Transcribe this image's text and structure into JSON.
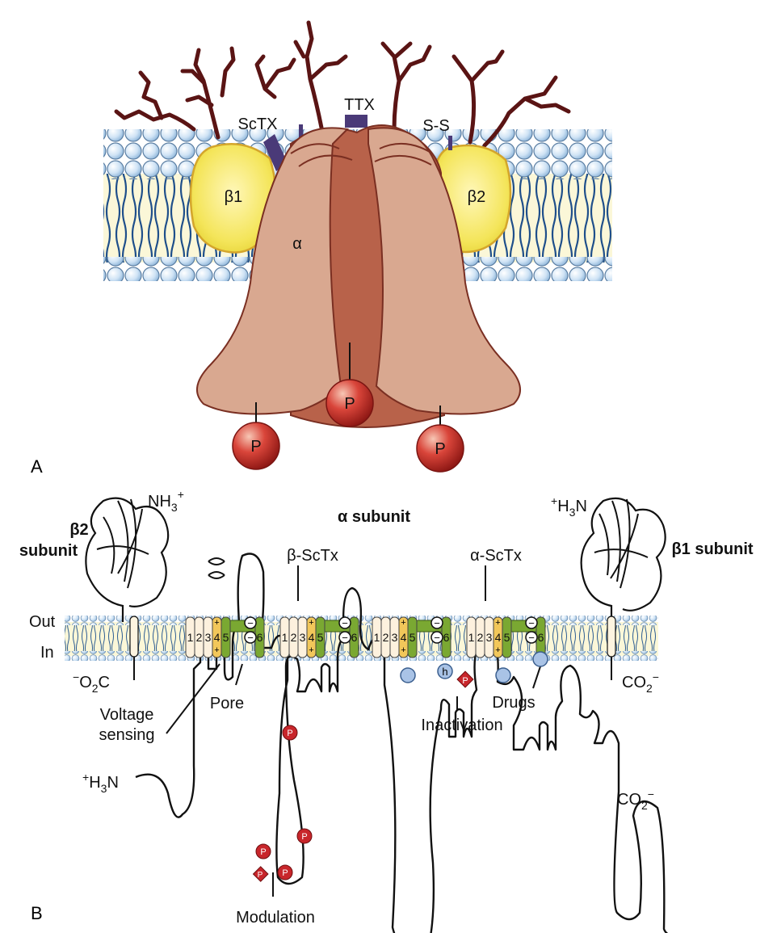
{
  "panel_a": {
    "label": "A",
    "toxins": {
      "sctx": "ScTX",
      "ttx": "TTX",
      "ss": "S-S"
    },
    "beta1": "β1",
    "beta2": "β2",
    "alpha": "α",
    "phosphate": "P"
  },
  "panel_b": {
    "label": "B",
    "alpha_title": "α subunit",
    "beta2_title_line1": "β2",
    "beta2_title_line2": "subunit",
    "beta1_title": "β1 subunit",
    "nh3_left": "NH",
    "nh3_left_sub": "3",
    "nh3_left_sup": "+",
    "h3n_right_sup": "+",
    "h3n_right": "H",
    "h3n_right_sub": "3",
    "h3n_right_end": "N",
    "out": "Out",
    "in": "In",
    "o2c_sup": "−",
    "o2c": "O",
    "o2c_sub": "2",
    "o2c_end": "C",
    "co2_right": "CO",
    "co2_right_sub": "2",
    "co2_right_sup": "−",
    "h3n_alpha_sup": "+",
    "h3n_alpha": "H",
    "h3n_alpha_sub": "3",
    "h3n_alpha_end": "N",
    "co2_alpha": "CO",
    "co2_alpha_sub": "2",
    "co2_alpha_sup": "−",
    "beta_sctx": "β-ScTx",
    "alpha_sctx": "α-ScTx",
    "voltage_line1": "Voltage",
    "voltage_line2": "sensing",
    "pore": "Pore",
    "inactivation": "Inactivation",
    "drugs": "Drugs",
    "modulation": "Modulation",
    "h": "h",
    "p": "P",
    "plus": "+",
    "minus": "−",
    "segments": [
      "1",
      "2",
      "3",
      "4",
      "5",
      "6"
    ]
  }
}
